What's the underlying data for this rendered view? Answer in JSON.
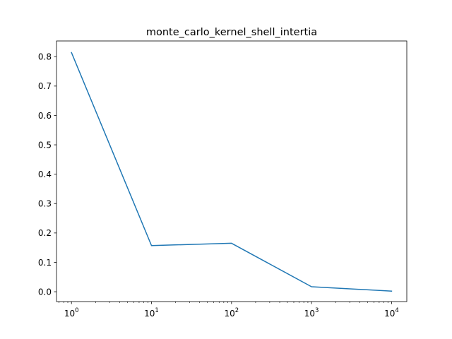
{
  "chart_data": {
    "type": "line",
    "title": "monte_carlo_kernel_shell_intertia",
    "xlabel": "",
    "ylabel": "",
    "x_scale": "log",
    "xlim": [
      0.65,
      15500
    ],
    "ylim": [
      -0.0335,
      0.8535
    ],
    "x_ticks": [
      {
        "value": 1,
        "base": "10",
        "exp": "0"
      },
      {
        "value": 10,
        "base": "10",
        "exp": "1"
      },
      {
        "value": 100,
        "base": "10",
        "exp": "2"
      },
      {
        "value": 1000,
        "base": "10",
        "exp": "3"
      },
      {
        "value": 10000,
        "base": "10",
        "exp": "4"
      }
    ],
    "y_ticks": [
      0.0,
      0.1,
      0.2,
      0.3,
      0.4,
      0.5,
      0.6,
      0.7,
      0.8
    ],
    "y_tick_labels": [
      "0.0",
      "0.1",
      "0.2",
      "0.3",
      "0.4",
      "0.5",
      "0.6",
      "0.7",
      "0.8"
    ],
    "grid": false,
    "series": [
      {
        "color": "#1f77b4",
        "x": [
          1,
          10,
          100,
          1000,
          10000
        ],
        "values": [
          0.814,
          0.157,
          0.165,
          0.017,
          0.002
        ]
      }
    ]
  }
}
